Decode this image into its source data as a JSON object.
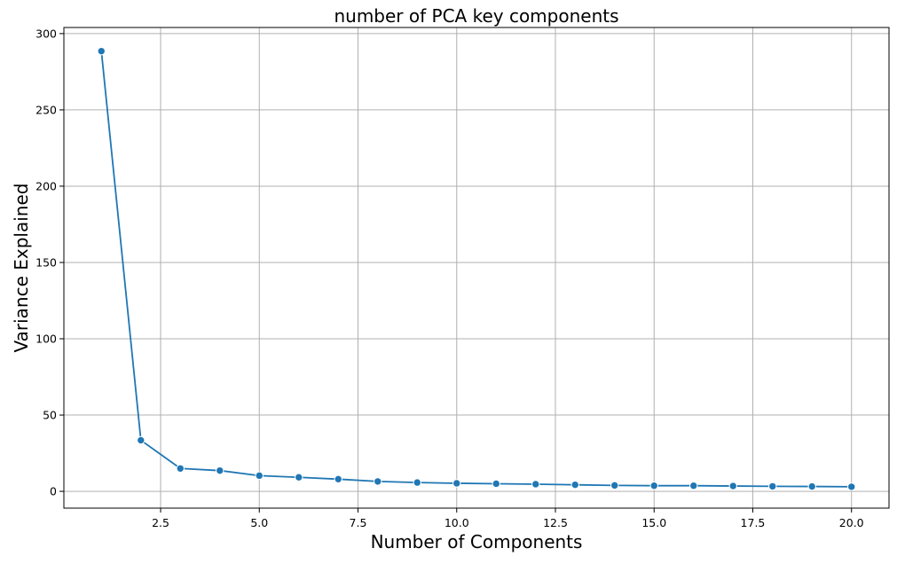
{
  "chart_data": {
    "type": "line",
    "title": "number of PCA key components",
    "xlabel": "Number of Components",
    "ylabel": "Variance Explained",
    "xlim": [
      0.05,
      20.95
    ],
    "ylim": [
      -11,
      304
    ],
    "xticks": [
      2.5,
      5.0,
      7.5,
      10.0,
      12.5,
      15.0,
      17.5,
      20.0
    ],
    "xtick_labels": [
      "2.5",
      "5.0",
      "7.5",
      "10.0",
      "12.5",
      "15.0",
      "17.5",
      "20.0"
    ],
    "yticks": [
      0,
      50,
      100,
      150,
      200,
      250,
      300
    ],
    "ytick_labels": [
      "0",
      "50",
      "100",
      "150",
      "200",
      "250",
      "300"
    ],
    "grid": true,
    "series": [
      {
        "color": "#1f77b4",
        "marker": "circle",
        "x": [
          1,
          2,
          3,
          4,
          5,
          6,
          7,
          8,
          9,
          10,
          11,
          12,
          13,
          14,
          15,
          16,
          17,
          18,
          19,
          20
        ],
        "y": [
          288.5,
          33.5,
          15.0,
          13.6,
          10.3,
          9.2,
          8.0,
          6.5,
          5.8,
          5.3,
          5.0,
          4.7,
          4.3,
          3.9,
          3.7,
          3.7,
          3.5,
          3.3,
          3.2,
          3.0
        ]
      }
    ]
  }
}
